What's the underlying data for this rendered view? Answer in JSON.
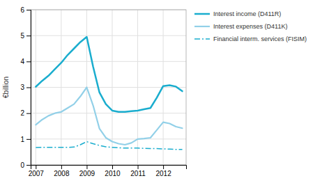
{
  "chart_data": {
    "type": "line",
    "y_label": "€billion",
    "x": [
      2007,
      2007.25,
      2007.5,
      2007.75,
      2008,
      2008.25,
      2008.5,
      2008.75,
      2009,
      2009.25,
      2009.5,
      2009.75,
      2010,
      2010.25,
      2010.5,
      2010.75,
      2011,
      2011.25,
      2011.5,
      2011.75,
      2012,
      2012.25,
      2012.5,
      2012.75
    ],
    "series": [
      {
        "name": "Interest income (D411R)",
        "color": "#1aadce",
        "line_style": "solid",
        "values": [
          3.02,
          3.25,
          3.45,
          3.7,
          3.95,
          4.25,
          4.5,
          4.75,
          4.95,
          3.8,
          2.8,
          2.35,
          2.1,
          2.05,
          2.05,
          2.08,
          2.1,
          2.15,
          2.2,
          2.6,
          3.05,
          3.08,
          3.03,
          2.85
        ]
      },
      {
        "name": "Interest expenses (D411K)",
        "color": "#92d0e8",
        "line_style": "solid",
        "values": [
          1.55,
          1.75,
          1.9,
          2.0,
          2.05,
          2.2,
          2.35,
          2.65,
          3.0,
          2.3,
          1.4,
          1.05,
          0.9,
          0.82,
          0.78,
          0.85,
          1.0,
          1.02,
          1.05,
          1.35,
          1.65,
          1.6,
          1.48,
          1.42
        ]
      },
      {
        "name": "Financial interm. services (FISIM)",
        "color": "#1aadce",
        "line_style": "dashdot",
        "values": [
          0.67,
          0.68,
          0.68,
          0.68,
          0.68,
          0.68,
          0.69,
          0.78,
          0.9,
          0.82,
          0.75,
          0.7,
          0.68,
          0.66,
          0.65,
          0.65,
          0.65,
          0.64,
          0.63,
          0.63,
          0.62,
          0.61,
          0.6,
          0.6
        ]
      }
    ],
    "xlim": [
      2006.8,
      2012.9
    ],
    "xticks": [
      2007,
      2008,
      2009,
      2010,
      2011,
      2012
    ],
    "ylim": [
      0,
      6
    ],
    "yticks": [
      0,
      1,
      2,
      3,
      4,
      5,
      6
    ],
    "grid": true,
    "legend": "right"
  }
}
